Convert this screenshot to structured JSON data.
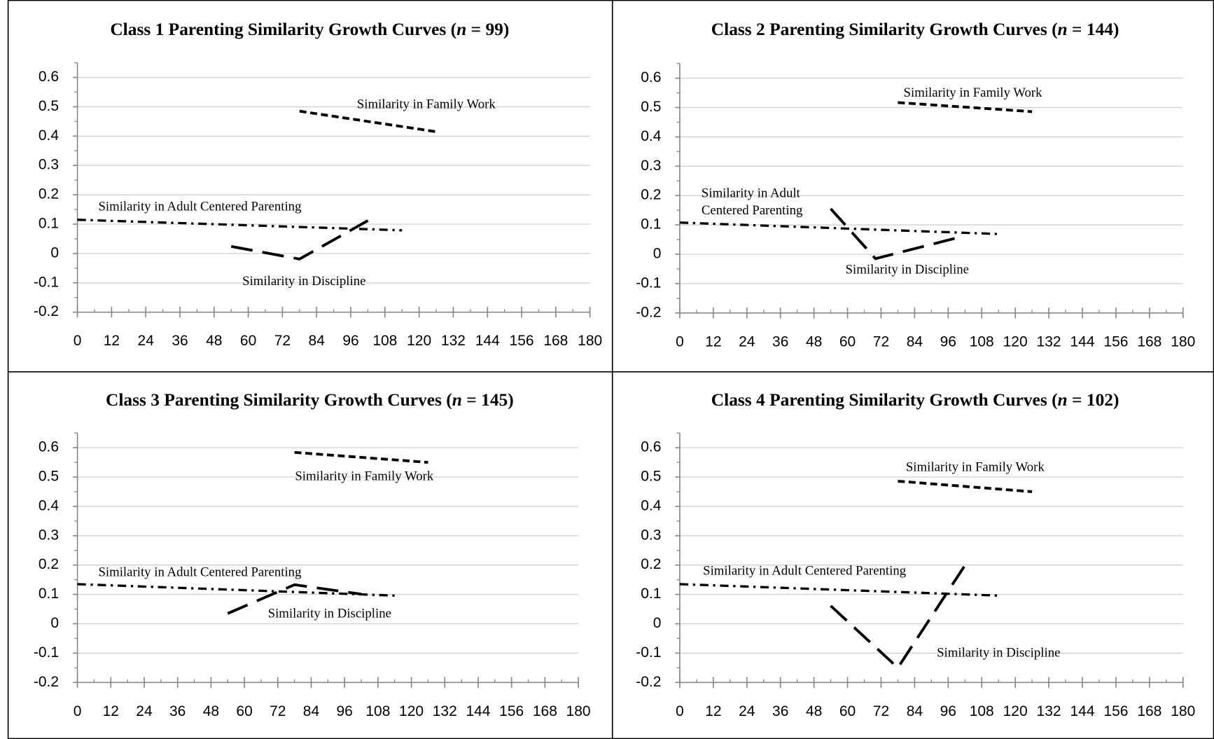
{
  "chart_data": [
    {
      "type": "line",
      "title": "Class 1 Parenting Similarity Growth Curves (n = 99)",
      "xlim": [
        0,
        180
      ],
      "ylim": [
        -0.2,
        0.65
      ],
      "xticks": [
        0,
        12,
        24,
        36,
        48,
        60,
        72,
        84,
        96,
        108,
        120,
        132,
        144,
        156,
        168,
        180
      ],
      "yticks": [
        -0.2,
        -0.1,
        0,
        0.1,
        0.2,
        0.3,
        0.4,
        0.5,
        0.6
      ],
      "grid": true,
      "series": [
        {
          "name": "Similarity in Family Work",
          "color": "#000000",
          "style": "dashed",
          "x": [
            78,
            126
          ],
          "values": [
            0.485,
            0.415
          ]
        },
        {
          "name": "Similarity in Adult Centered Parenting",
          "color": "#000000",
          "style": "dash-dot",
          "x": [
            0,
            114
          ],
          "values": [
            0.115,
            0.079
          ]
        },
        {
          "name": "Similarity in Discipline",
          "color": "#000000",
          "style": "long-dash",
          "x": [
            54,
            78,
            102
          ],
          "values": [
            0.024,
            -0.019,
            0.112
          ]
        }
      ]
    },
    {
      "type": "line",
      "title": "Class 2 Parenting Similarity Growth Curves (n = 144)",
      "xlim": [
        0,
        180
      ],
      "ylim": [
        -0.2,
        0.65
      ],
      "xticks": [
        0,
        12,
        24,
        36,
        48,
        60,
        72,
        84,
        96,
        108,
        120,
        132,
        144,
        156,
        168,
        180
      ],
      "yticks": [
        -0.2,
        -0.1,
        0,
        0.1,
        0.2,
        0.3,
        0.4,
        0.5,
        0.6
      ],
      "grid": true,
      "series": [
        {
          "name": "Similarity in Family Work",
          "color": "#000000",
          "style": "dashed",
          "x": [
            78,
            126
          ],
          "values": [
            0.517,
            0.486
          ]
        },
        {
          "name": "Similarity in Adult Centered Parenting",
          "color": "#000000",
          "style": "dash-dot",
          "x": [
            0,
            114
          ],
          "values": [
            0.108,
            0.069
          ]
        },
        {
          "name": "Similarity in Discipline",
          "color": "#000000",
          "style": "long-dash",
          "x": [
            54,
            70,
            100
          ],
          "values": [
            0.155,
            -0.015,
            0.058
          ]
        }
      ]
    },
    {
      "type": "line",
      "title": "Class 3 Parenting Similarity Growth Curves (n = 145)",
      "xlim": [
        0,
        180
      ],
      "ylim": [
        -0.2,
        0.65
      ],
      "xticks": [
        0,
        12,
        24,
        36,
        48,
        60,
        72,
        84,
        96,
        108,
        120,
        132,
        144,
        156,
        168,
        180
      ],
      "yticks": [
        -0.2,
        -0.1,
        0,
        0.1,
        0.2,
        0.3,
        0.4,
        0.5,
        0.6
      ],
      "grid": true,
      "series": [
        {
          "name": "Similarity in Family Work",
          "color": "#000000",
          "style": "dashed",
          "x": [
            78,
            126
          ],
          "values": [
            0.584,
            0.55
          ]
        },
        {
          "name": "Similarity in Adult Centered Parenting",
          "color": "#000000",
          "style": "dash-dot",
          "x": [
            0,
            114
          ],
          "values": [
            0.135,
            0.096
          ]
        },
        {
          "name": "Similarity in Discipline",
          "color": "#000000",
          "style": "long-dash",
          "x": [
            54,
            78,
            102
          ],
          "values": [
            0.035,
            0.133,
            0.101
          ]
        }
      ]
    },
    {
      "type": "line",
      "title": "Class 4 Parenting Similarity Growth Curves (n = 102)",
      "xlim": [
        0,
        180
      ],
      "ylim": [
        -0.2,
        0.65
      ],
      "xticks": [
        0,
        12,
        24,
        36,
        48,
        60,
        72,
        84,
        96,
        108,
        120,
        132,
        144,
        156,
        168,
        180
      ],
      "yticks": [
        -0.2,
        -0.1,
        0,
        0.1,
        0.2,
        0.3,
        0.4,
        0.5,
        0.6
      ],
      "grid": true,
      "series": [
        {
          "name": "Similarity in Family Work",
          "color": "#000000",
          "style": "dashed",
          "x": [
            78,
            126
          ],
          "values": [
            0.486,
            0.45
          ]
        },
        {
          "name": "Similarity in Adult Centered Parenting",
          "color": "#000000",
          "style": "dash-dot",
          "x": [
            0,
            114
          ],
          "values": [
            0.135,
            0.096
          ]
        },
        {
          "name": "Similarity in Discipline",
          "color": "#000000",
          "style": "long-dash",
          "x": [
            54,
            78,
            102
          ],
          "values": [
            0.061,
            -0.15,
            0.199
          ]
        }
      ]
    }
  ]
}
